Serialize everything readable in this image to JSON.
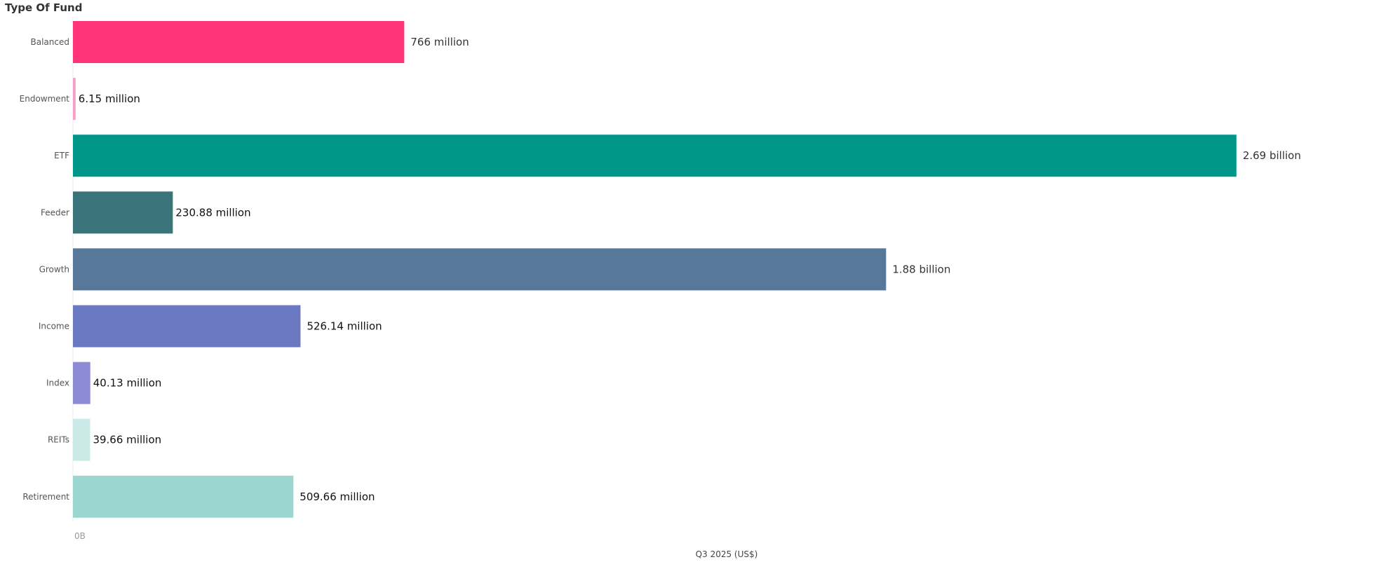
{
  "chart_data": {
    "type": "bar",
    "orientation": "horizontal",
    "title": "Type Of Fund",
    "xlabel": "Q3 2025 (US$)",
    "ylabel": "",
    "xlim": [
      0,
      3000000000
    ],
    "x_ticks": [
      "0B"
    ],
    "grid": false,
    "categories": [
      "Balanced",
      "Endowment",
      "ETF",
      "Feeder",
      "Growth",
      "Income",
      "Index",
      "REITs",
      "Retirement"
    ],
    "values": [
      766000000,
      6150000,
      2690000000,
      230880000,
      1880000000,
      526140000,
      40130000,
      39660000,
      509660000
    ],
    "data_labels": [
      "766 million",
      "6.15 million",
      "2.69 billion",
      "230.88 million",
      "1.88 billion",
      "526.14 million",
      "40.13 million",
      "39.66 million",
      "509.66 million"
    ],
    "colors": [
      "#FF3377",
      "#F7A1C8",
      "#009688",
      "#3B737A",
      "#577899",
      "#6B79C2",
      "#8E8BD6",
      "#CBE9E6",
      "#9BD6CF"
    ],
    "label_colors": [
      "#333333",
      "#111111",
      "#333333",
      "#111111",
      "#333333",
      "#111111",
      "#111111",
      "#111111",
      "#111111"
    ]
  }
}
